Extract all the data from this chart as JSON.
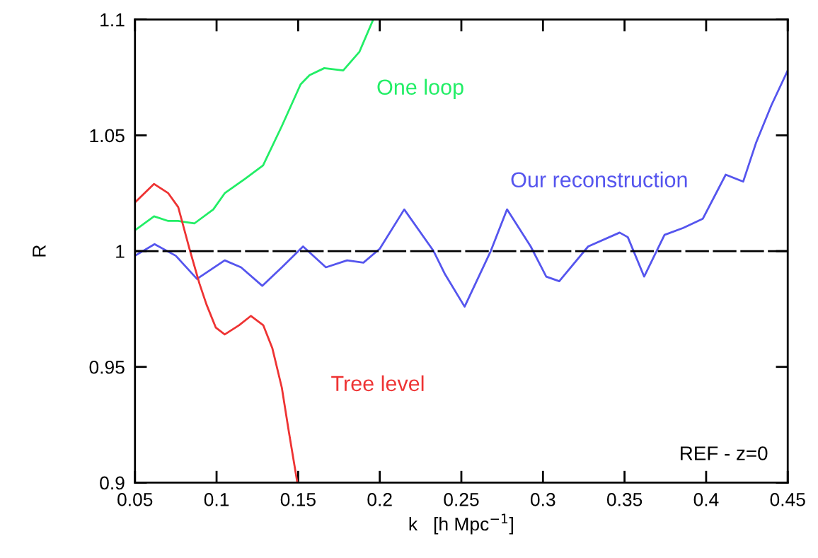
{
  "chart_data": {
    "type": "line",
    "xlabel": "k   [h Mpc$^{−1}$]",
    "ylabel": "R",
    "xlim": [
      0.05,
      0.45
    ],
    "ylim": [
      0.9,
      1.1
    ],
    "xticks": [
      0.05,
      0.1,
      0.15,
      0.2,
      0.25,
      0.3,
      0.35,
      0.4,
      0.45
    ],
    "yticks": [
      0.9,
      0.95,
      1,
      1.05,
      1.1
    ],
    "grid": false,
    "legend": false,
    "marker": "none",
    "ref_lines": [
      {
        "axis": "y",
        "value": 1,
        "color": "#000000",
        "line_style": "dashed"
      }
    ],
    "annotations": [
      "REF - z=0"
    ],
    "series": [
      {
        "name": "One loop",
        "color": "#22ee66",
        "x": [
          0.05,
          0.0617,
          0.0704,
          0.0765,
          0.0865,
          0.098,
          0.105,
          0.117,
          0.1285,
          0.14,
          0.1515,
          0.157,
          0.166,
          0.1776,
          0.1875,
          0.196
        ],
        "values": [
          1.009,
          1.015,
          1.013,
          1.013,
          1.012,
          1.018,
          1.025,
          1.031,
          1.037,
          1.054,
          1.072,
          1.076,
          1.079,
          1.078,
          1.086,
          1.1
        ]
      },
      {
        "name": "Our reconstruction",
        "color": "#5555ee",
        "x": [
          0.05,
          0.062,
          0.075,
          0.088,
          0.105,
          0.115,
          0.128,
          0.14,
          0.153,
          0.167,
          0.18,
          0.19,
          0.2,
          0.215,
          0.233,
          0.24,
          0.252,
          0.268,
          0.278,
          0.2925,
          0.302,
          0.31,
          0.3277,
          0.347,
          0.352,
          0.362,
          0.3745,
          0.386,
          0.398,
          0.412,
          0.4227,
          0.4307,
          0.44,
          0.45
        ],
        "values": [
          0.998,
          1.003,
          0.998,
          0.988,
          0.996,
          0.993,
          0.985,
          0.993,
          1.002,
          0.993,
          0.996,
          0.995,
          1.001,
          1.018,
          1.0,
          0.99,
          0.976,
          1.0,
          1.018,
          1.002,
          0.989,
          0.987,
          1.002,
          1.008,
          1.006,
          0.989,
          1.007,
          1.01,
          1.014,
          1.033,
          1.03,
          1.047,
          1.063,
          1.078
        ]
      },
      {
        "name": "Tree level",
        "color": "#ee3333",
        "x": [
          0.05,
          0.0617,
          0.0704,
          0.0765,
          0.0834,
          0.0895,
          0.0938,
          0.0995,
          0.105,
          0.1138,
          0.121,
          0.1286,
          0.1342,
          0.14,
          0.1443,
          0.1495
        ],
        "values": [
          1.021,
          1.029,
          1.025,
          1.019,
          1.001,
          0.986,
          0.977,
          0.967,
          0.964,
          0.968,
          0.972,
          0.968,
          0.958,
          0.941,
          0.922,
          0.9
        ]
      }
    ]
  }
}
